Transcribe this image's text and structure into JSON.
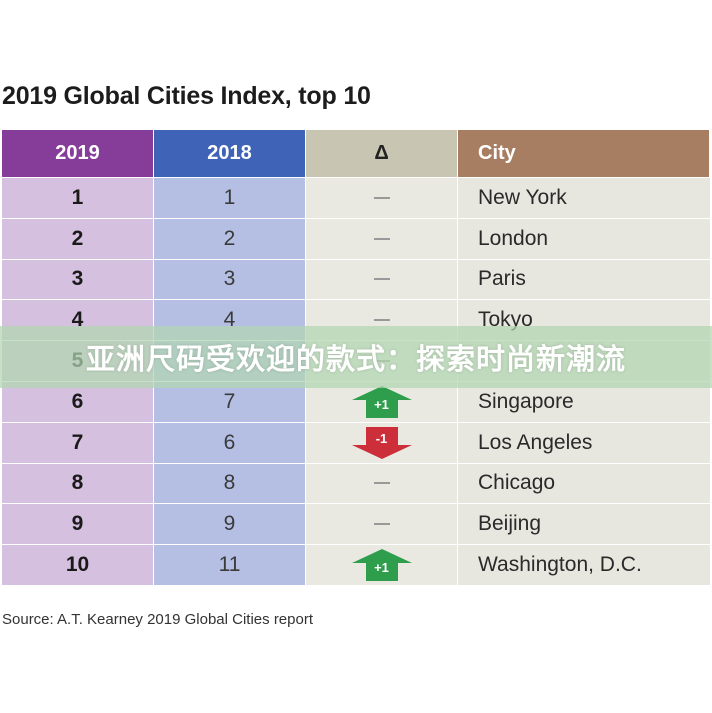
{
  "title": "2019 Global Cities Index, top 10",
  "source": "Source: A.T. Kearney 2019 Global Cities report",
  "banner": "亚洲尺码受欢迎的款式：探索时尚新潮流",
  "chart_data": {
    "type": "table",
    "columns": [
      "2019",
      "2018",
      "Δ",
      "City"
    ],
    "rows": [
      {
        "rank_2019": "1",
        "rank_2018": "1",
        "change": "",
        "city": "New York"
      },
      {
        "rank_2019": "2",
        "rank_2018": "2",
        "change": "",
        "city": "London"
      },
      {
        "rank_2019": "3",
        "rank_2018": "3",
        "change": "",
        "city": "Paris"
      },
      {
        "rank_2019": "4",
        "rank_2018": "4",
        "change": "",
        "city": "Tokyo"
      },
      {
        "rank_2019": "5",
        "rank_2018": "",
        "change": "",
        "city": ""
      },
      {
        "rank_2019": "6",
        "rank_2018": "7",
        "change": "+1",
        "city": "Singapore"
      },
      {
        "rank_2019": "7",
        "rank_2018": "6",
        "change": "-1",
        "city": "Los Angeles"
      },
      {
        "rank_2019": "8",
        "rank_2018": "8",
        "change": "",
        "city": "Chicago"
      },
      {
        "rank_2019": "9",
        "rank_2018": "9",
        "change": "",
        "city": "Beijing"
      },
      {
        "rank_2019": "10",
        "rank_2018": "11",
        "change": "+1",
        "city": "Washington, D.C."
      }
    ],
    "colors": {
      "header_2019": "#863d99",
      "header_2018": "#3f63b6",
      "header_delta": "#c8c6b2",
      "header_city": "#a87e62",
      "col_2019": "#d6c0df",
      "col_2018": "#b4bfe3",
      "col_delta": "#e9e9e2",
      "col_city": "#e7e7df",
      "up": "#2e9e4c",
      "down": "#cc2e3a"
    }
  }
}
